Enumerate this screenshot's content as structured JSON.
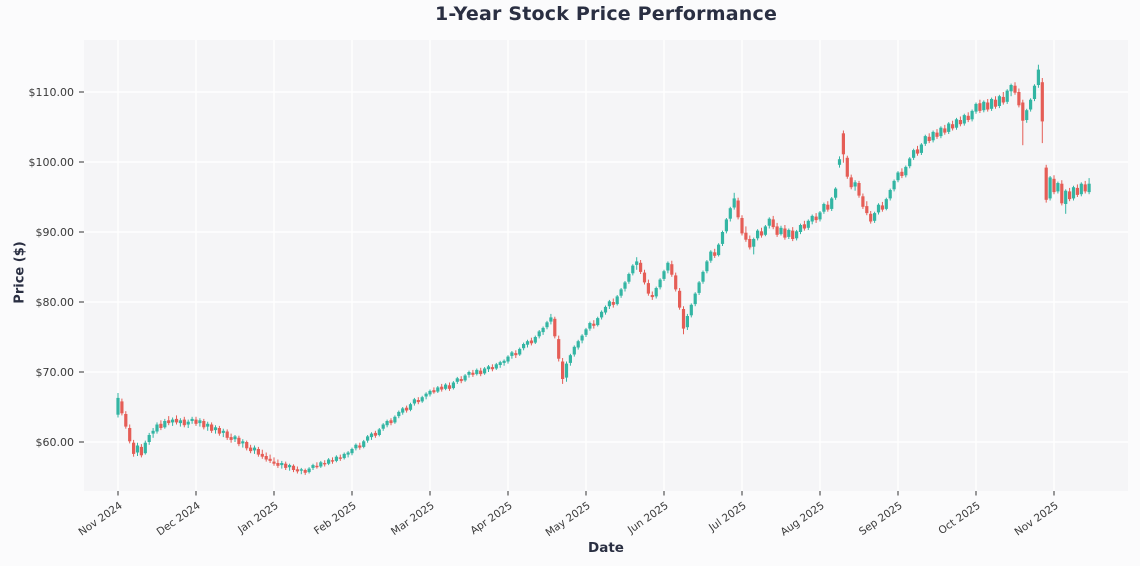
{
  "chart_data": {
    "type": "candlestick",
    "title": "1-Year Stock Price Performance",
    "xlabel": "Date",
    "ylabel": "Price ($)",
    "grid": true,
    "legend": "none",
    "ylim": [
      53.0,
      117.43
    ],
    "y_ticks": {
      "values": [
        60,
        70,
        80,
        90,
        100,
        110
      ],
      "labels": [
        "$60.00",
        "$70.00",
        "$80.00",
        "$90.00",
        "$100.00",
        "$110.00"
      ]
    },
    "x_ticks": {
      "days": [
        0,
        20,
        40,
        60,
        80,
        100,
        120,
        140,
        160,
        180,
        200,
        220,
        240
      ],
      "labels": [
        "Nov 2024",
        "Dec 2024",
        "Jan 2025",
        "Feb 2025",
        "Mar 2025",
        "Apr 2025",
        "May 2025",
        "Jun 2025",
        "Jul 2025",
        "Aug 2025",
        "Sep 2025",
        "Oct 2025",
        "Nov 2025"
      ]
    },
    "colors": {
      "up": "#33b5a3",
      "down": "#e55d56",
      "plot_bg": "#f5f5f7",
      "figure_bg": "#fbfbfc",
      "grid": "#ffffff",
      "title_text": "#2a2f42",
      "tick_text": "#3a3a3a",
      "tick_mark": "#333333"
    },
    "candles": [
      [
        63.9,
        67.0,
        63.5,
        66.3
      ],
      [
        65.8,
        66.2,
        63.8,
        64.1
      ],
      [
        64.0,
        64.4,
        61.9,
        62.2
      ],
      [
        62.0,
        62.5,
        59.8,
        60.1
      ],
      [
        59.9,
        60.3,
        57.9,
        58.3
      ],
      [
        58.5,
        59.9,
        58.0,
        59.5
      ],
      [
        59.3,
        59.7,
        57.8,
        58.1
      ],
      [
        58.4,
        60.2,
        58.2,
        59.9
      ],
      [
        60.0,
        61.3,
        59.6,
        61.0
      ],
      [
        61.2,
        62.0,
        60.6,
        61.6
      ],
      [
        61.5,
        62.8,
        61.2,
        62.5
      ],
      [
        62.6,
        63.1,
        61.7,
        62.0
      ],
      [
        62.1,
        63.3,
        61.9,
        63.0
      ],
      [
        63.1,
        63.7,
        62.4,
        62.7
      ],
      [
        62.8,
        63.5,
        62.3,
        63.2
      ],
      [
        63.3,
        63.8,
        62.5,
        62.8
      ],
      [
        62.7,
        63.4,
        62.2,
        63.1
      ],
      [
        63.2,
        63.6,
        62.1,
        62.4
      ],
      [
        62.5,
        63.2,
        62.0,
        62.9
      ],
      [
        63.0,
        63.6,
        62.6,
        63.3
      ],
      [
        63.2,
        63.6,
        62.3,
        62.6
      ],
      [
        62.7,
        63.4,
        62.2,
        63.1
      ],
      [
        63.0,
        63.3,
        61.8,
        62.1
      ],
      [
        62.2,
        62.9,
        61.6,
        62.6
      ],
      [
        62.5,
        62.8,
        61.3,
        61.6
      ],
      [
        61.7,
        62.4,
        61.2,
        62.1
      ],
      [
        62.0,
        62.3,
        60.9,
        61.2
      ],
      [
        61.3,
        61.9,
        60.7,
        61.6
      ],
      [
        61.5,
        61.8,
        60.3,
        60.6
      ],
      [
        60.7,
        61.2,
        59.9,
        60.3
      ],
      [
        60.4,
        61.0,
        60.0,
        60.8
      ],
      [
        60.6,
        60.9,
        59.4,
        59.7
      ],
      [
        59.8,
        60.4,
        59.2,
        60.1
      ],
      [
        60.0,
        60.2,
        58.8,
        59.1
      ],
      [
        59.2,
        59.6,
        58.4,
        58.7
      ],
      [
        58.8,
        59.5,
        58.3,
        59.2
      ],
      [
        59.0,
        59.3,
        57.9,
        58.2
      ],
      [
        58.3,
        58.9,
        57.6,
        57.9
      ],
      [
        58.0,
        58.5,
        57.2,
        57.5
      ],
      [
        57.6,
        58.2,
        57.0,
        57.3
      ],
      [
        57.2,
        57.8,
        56.6,
        56.9
      ],
      [
        57.0,
        57.5,
        56.3,
        56.6
      ],
      [
        56.7,
        57.3,
        56.2,
        57.0
      ],
      [
        56.9,
        57.2,
        56.0,
        56.3
      ],
      [
        56.4,
        56.9,
        55.9,
        56.7
      ],
      [
        56.6,
        56.8,
        55.7,
        56.0
      ],
      [
        56.1,
        56.5,
        55.5,
        55.8
      ],
      [
        55.9,
        56.3,
        55.4,
        56.1
      ],
      [
        56.0,
        56.2,
        55.3,
        55.6
      ],
      [
        55.7,
        56.4,
        55.5,
        56.2
      ],
      [
        56.3,
        56.9,
        56.0,
        56.7
      ],
      [
        56.6,
        57.1,
        56.2,
        56.4
      ],
      [
        56.5,
        57.3,
        56.3,
        57.1
      ],
      [
        57.0,
        57.4,
        56.5,
        56.8
      ],
      [
        56.9,
        57.7,
        56.7,
        57.5
      ],
      [
        57.4,
        57.8,
        56.9,
        57.2
      ],
      [
        57.3,
        58.1,
        57.1,
        57.9
      ],
      [
        57.8,
        58.2,
        57.3,
        57.6
      ],
      [
        57.7,
        58.5,
        57.5,
        58.3
      ],
      [
        58.2,
        58.7,
        57.8,
        58.5
      ],
      [
        58.4,
        59.2,
        58.1,
        59.0
      ],
      [
        59.1,
        59.8,
        58.8,
        59.6
      ],
      [
        59.5,
        59.9,
        58.9,
        59.2
      ],
      [
        59.3,
        60.3,
        59.1,
        60.1
      ],
      [
        60.2,
        61.0,
        59.9,
        60.8
      ],
      [
        60.7,
        61.4,
        60.3,
        61.2
      ],
      [
        61.3,
        61.6,
        60.6,
        60.9
      ],
      [
        61.0,
        62.0,
        60.8,
        61.8
      ],
      [
        61.9,
        62.7,
        61.6,
        62.5
      ],
      [
        62.4,
        63.2,
        62.1,
        63.0
      ],
      [
        63.1,
        63.4,
        62.4,
        62.7
      ],
      [
        62.8,
        63.8,
        62.6,
        63.6
      ],
      [
        63.7,
        64.5,
        63.4,
        64.3
      ],
      [
        64.2,
        65.0,
        63.9,
        64.8
      ],
      [
        64.9,
        65.2,
        64.2,
        64.5
      ],
      [
        64.6,
        65.6,
        64.4,
        65.4
      ],
      [
        65.5,
        66.3,
        65.2,
        66.1
      ],
      [
        66.0,
        66.4,
        65.4,
        65.7
      ],
      [
        65.8,
        66.6,
        65.6,
        66.4
      ],
      [
        66.5,
        67.1,
        66.1,
        66.9
      ],
      [
        66.8,
        67.5,
        66.5,
        67.3
      ],
      [
        67.4,
        67.8,
        66.9,
        67.1
      ],
      [
        67.2,
        68.0,
        67.0,
        67.8
      ],
      [
        67.9,
        68.3,
        67.2,
        67.5
      ],
      [
        67.6,
        68.4,
        67.4,
        68.2
      ],
      [
        68.1,
        68.5,
        67.3,
        67.6
      ],
      [
        67.7,
        68.7,
        67.5,
        68.5
      ],
      [
        68.6,
        69.3,
        68.3,
        69.1
      ],
      [
        69.0,
        69.4,
        68.4,
        68.7
      ],
      [
        68.8,
        69.7,
        68.6,
        69.5
      ],
      [
        69.6,
        70.2,
        69.2,
        70.0
      ],
      [
        69.9,
        70.3,
        69.3,
        69.6
      ],
      [
        69.7,
        70.5,
        69.5,
        70.3
      ],
      [
        70.2,
        70.6,
        69.4,
        69.7
      ],
      [
        69.8,
        70.7,
        69.6,
        70.5
      ],
      [
        70.4,
        71.0,
        70.0,
        70.8
      ],
      [
        70.7,
        71.1,
        70.1,
        70.4
      ],
      [
        70.5,
        71.3,
        70.3,
        71.1
      ],
      [
        71.0,
        71.6,
        70.6,
        71.4
      ],
      [
        71.3,
        71.8,
        70.9,
        71.6
      ],
      [
        71.5,
        72.4,
        71.2,
        72.2
      ],
      [
        72.3,
        73.0,
        71.9,
        72.8
      ],
      [
        72.7,
        73.1,
        72.0,
        72.4
      ],
      [
        72.5,
        73.5,
        72.3,
        73.3
      ],
      [
        73.4,
        74.2,
        73.1,
        74.0
      ],
      [
        73.9,
        74.6,
        73.5,
        74.4
      ],
      [
        74.5,
        74.9,
        73.8,
        74.1
      ],
      [
        74.2,
        75.2,
        74.0,
        75.0
      ],
      [
        75.1,
        76.0,
        74.8,
        75.8
      ],
      [
        75.7,
        76.5,
        75.3,
        76.3
      ],
      [
        76.4,
        77.3,
        76.1,
        77.1
      ],
      [
        77.2,
        78.3,
        76.8,
        77.8
      ],
      [
        77.6,
        77.9,
        74.8,
        75.1
      ],
      [
        74.7,
        75.2,
        71.5,
        71.9
      ],
      [
        71.5,
        72.0,
        68.3,
        69.0
      ],
      [
        69.2,
        71.5,
        68.6,
        71.2
      ],
      [
        71.3,
        72.6,
        70.9,
        72.4
      ],
      [
        72.5,
        73.8,
        72.2,
        73.6
      ],
      [
        73.5,
        74.6,
        73.2,
        74.4
      ],
      [
        74.5,
        75.4,
        74.1,
        75.2
      ],
      [
        75.3,
        76.3,
        75.0,
        76.1
      ],
      [
        76.2,
        77.2,
        75.9,
        77.0
      ],
      [
        76.9,
        77.4,
        76.2,
        76.6
      ],
      [
        76.7,
        77.9,
        76.5,
        77.7
      ],
      [
        77.8,
        78.8,
        77.5,
        78.6
      ],
      [
        78.5,
        79.5,
        78.2,
        79.3
      ],
      [
        79.4,
        80.3,
        79.0,
        80.1
      ],
      [
        80.0,
        80.5,
        79.2,
        79.6
      ],
      [
        79.7,
        81.0,
        79.5,
        80.8
      ],
      [
        80.9,
        82.0,
        80.6,
        81.8
      ],
      [
        81.9,
        83.0,
        81.5,
        82.8
      ],
      [
        82.9,
        84.2,
        82.6,
        84.0
      ],
      [
        84.1,
        85.4,
        83.8,
        85.2
      ],
      [
        85.3,
        86.4,
        84.6,
        85.8
      ],
      [
        85.6,
        86.0,
        84.0,
        84.3
      ],
      [
        84.2,
        84.6,
        82.5,
        82.8
      ],
      [
        82.7,
        83.2,
        80.9,
        81.2
      ],
      [
        81.0,
        81.5,
        80.3,
        80.7
      ],
      [
        80.8,
        82.2,
        80.5,
        82.0
      ],
      [
        82.1,
        83.4,
        81.8,
        83.2
      ],
      [
        83.3,
        84.6,
        83.0,
        84.4
      ],
      [
        84.5,
        85.8,
        84.1,
        85.6
      ],
      [
        85.4,
        85.9,
        83.6,
        83.9
      ],
      [
        83.8,
        84.2,
        81.5,
        81.8
      ],
      [
        81.6,
        82.0,
        78.9,
        79.2
      ],
      [
        79.0,
        79.4,
        75.4,
        76.2
      ],
      [
        76.4,
        78.3,
        76.0,
        78.0
      ],
      [
        78.1,
        79.8,
        77.8,
        79.6
      ],
      [
        79.7,
        81.4,
        79.4,
        81.2
      ],
      [
        81.3,
        83.0,
        81.0,
        82.8
      ],
      [
        82.9,
        84.5,
        82.6,
        84.3
      ],
      [
        84.4,
        86.0,
        84.1,
        85.8
      ],
      [
        85.9,
        87.4,
        85.6,
        87.2
      ],
      [
        87.1,
        87.6,
        86.3,
        86.6
      ],
      [
        86.7,
        88.4,
        86.5,
        88.2
      ],
      [
        88.3,
        90.2,
        88.0,
        90.0
      ],
      [
        90.1,
        92.0,
        89.8,
        91.8
      ],
      [
        91.9,
        93.6,
        91.5,
        93.4
      ],
      [
        93.5,
        95.6,
        93.2,
        94.8
      ],
      [
        94.5,
        94.9,
        91.8,
        92.1
      ],
      [
        92.0,
        92.4,
        89.5,
        89.8
      ],
      [
        89.9,
        90.8,
        88.6,
        88.9
      ],
      [
        89.0,
        89.5,
        87.5,
        87.8
      ],
      [
        87.9,
        89.2,
        86.8,
        89.0
      ],
      [
        89.1,
        90.4,
        88.8,
        90.2
      ],
      [
        90.1,
        90.6,
        89.2,
        89.5
      ],
      [
        89.6,
        91.0,
        89.4,
        90.8
      ],
      [
        90.9,
        92.1,
        90.5,
        91.9
      ],
      [
        91.8,
        92.3,
        90.4,
        90.7
      ],
      [
        90.8,
        91.3,
        89.3,
        89.6
      ],
      [
        89.7,
        90.9,
        89.5,
        90.6
      ],
      [
        90.5,
        91.0,
        88.9,
        89.2
      ],
      [
        89.3,
        90.5,
        89.0,
        90.3
      ],
      [
        90.2,
        90.7,
        88.7,
        89.0
      ],
      [
        89.1,
        90.3,
        88.8,
        90.1
      ],
      [
        90.0,
        91.2,
        89.7,
        91.0
      ],
      [
        91.1,
        91.6,
        90.2,
        90.5
      ],
      [
        90.6,
        91.8,
        90.3,
        91.6
      ],
      [
        91.5,
        92.5,
        91.1,
        92.3
      ],
      [
        92.2,
        92.7,
        91.3,
        91.7
      ],
      [
        91.8,
        93.0,
        91.5,
        92.8
      ],
      [
        92.9,
        94.2,
        92.6,
        94.0
      ],
      [
        93.9,
        94.4,
        92.9,
        93.2
      ],
      [
        93.3,
        95.0,
        93.0,
        94.8
      ],
      [
        94.9,
        96.4,
        94.6,
        96.2
      ],
      [
        99.6,
        100.8,
        99.2,
        100.4
      ],
      [
        104.1,
        104.5,
        99.9,
        101.1
      ],
      [
        100.6,
        100.9,
        97.6,
        97.9
      ],
      [
        97.8,
        98.2,
        96.1,
        96.4
      ],
      [
        96.5,
        97.4,
        95.9,
        97.1
      ],
      [
        97.0,
        97.3,
        94.9,
        95.2
      ],
      [
        95.1,
        95.5,
        93.3,
        93.6
      ],
      [
        93.7,
        94.4,
        92.4,
        92.7
      ],
      [
        92.6,
        93.0,
        91.2,
        91.5
      ],
      [
        91.6,
        92.9,
        91.3,
        92.7
      ],
      [
        92.8,
        94.1,
        92.5,
        93.9
      ],
      [
        93.8,
        94.3,
        92.9,
        93.2
      ],
      [
        93.3,
        94.9,
        93.1,
        94.7
      ],
      [
        94.8,
        96.2,
        94.5,
        96.0
      ],
      [
        96.1,
        97.5,
        95.8,
        97.3
      ],
      [
        97.4,
        98.7,
        97.1,
        98.5
      ],
      [
        98.6,
        99.1,
        97.7,
        98.0
      ],
      [
        98.1,
        99.5,
        97.8,
        99.3
      ],
      [
        99.4,
        100.7,
        99.1,
        100.5
      ],
      [
        100.6,
        101.9,
        100.3,
        101.7
      ],
      [
        101.8,
        102.3,
        100.9,
        101.2
      ],
      [
        101.3,
        102.7,
        101.0,
        102.5
      ],
      [
        102.6,
        103.9,
        102.3,
        103.7
      ],
      [
        103.6,
        104.1,
        102.7,
        103.0
      ],
      [
        103.1,
        104.5,
        102.8,
        104.3
      ],
      [
        104.2,
        104.7,
        103.3,
        103.6
      ],
      [
        103.7,
        105.1,
        103.4,
        104.9
      ],
      [
        104.8,
        105.3,
        103.9,
        104.2
      ],
      [
        104.3,
        105.7,
        104.0,
        105.5
      ],
      [
        105.4,
        105.9,
        104.5,
        104.8
      ],
      [
        104.9,
        106.3,
        104.6,
        106.1
      ],
      [
        106.0,
        106.5,
        105.1,
        105.4
      ],
      [
        105.5,
        106.9,
        105.2,
        106.7
      ],
      [
        106.6,
        107.1,
        105.7,
        106.0
      ],
      [
        106.1,
        107.5,
        105.8,
        107.3
      ],
      [
        107.2,
        108.5,
        106.9,
        108.3
      ],
      [
        108.4,
        108.9,
        107.0,
        107.3
      ],
      [
        107.4,
        108.8,
        107.1,
        108.6
      ],
      [
        108.5,
        109.0,
        107.2,
        107.5
      ],
      [
        107.6,
        109.2,
        107.3,
        109.0
      ],
      [
        108.9,
        109.4,
        107.6,
        107.9
      ],
      [
        108.0,
        109.6,
        107.7,
        109.4
      ],
      [
        109.3,
        110.0,
        108.2,
        108.5
      ],
      [
        108.6,
        110.4,
        108.3,
        110.2
      ],
      [
        110.1,
        111.2,
        109.4,
        111.0
      ],
      [
        110.9,
        111.4,
        109.6,
        109.9
      ],
      [
        110.0,
        110.5,
        107.8,
        108.1
      ],
      [
        108.5,
        108.9,
        102.4,
        105.9
      ],
      [
        106.0,
        107.6,
        105.6,
        107.4
      ],
      [
        107.5,
        109.1,
        107.2,
        108.9
      ],
      [
        109.0,
        111.1,
        108.7,
        110.9
      ],
      [
        111.0,
        113.9,
        110.6,
        113.2
      ],
      [
        111.4,
        112.0,
        102.7,
        105.8
      ],
      [
        99.2,
        99.6,
        94.2,
        94.6
      ],
      [
        94.8,
        98.0,
        94.5,
        97.8
      ],
      [
        97.6,
        98.1,
        95.4,
        95.7
      ],
      [
        95.8,
        97.2,
        95.5,
        97.0
      ],
      [
        96.9,
        97.4,
        93.8,
        94.1
      ],
      [
        94.0,
        96.1,
        92.6,
        95.9
      ],
      [
        95.8,
        96.3,
        94.4,
        94.7
      ],
      [
        94.8,
        96.6,
        94.5,
        96.4
      ],
      [
        96.3,
        96.8,
        95.0,
        95.3
      ],
      [
        95.4,
        97.1,
        95.1,
        96.9
      ],
      [
        96.8,
        97.3,
        95.5,
        95.8
      ],
      [
        95.7,
        97.7,
        95.4,
        96.9
      ]
    ]
  }
}
